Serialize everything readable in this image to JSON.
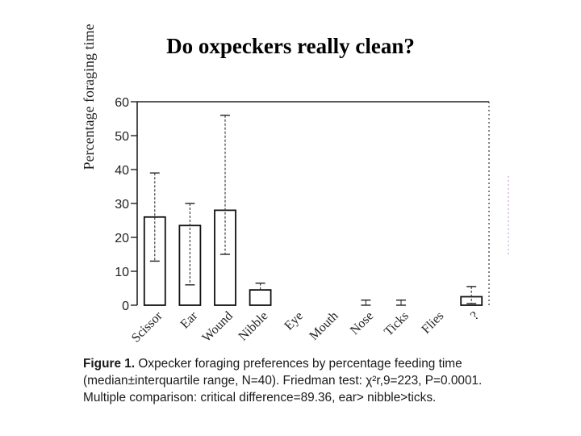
{
  "slide": {
    "title": "Do oxpeckers really clean?"
  },
  "caption": {
    "label": "Figure 1.",
    "text": "Oxpecker foraging preferences by percentage feeding time (median±interquartile range, N=40). Friedman test: χ²r,9=223, P=0.0001. Multiple comparison: critical difference=89.36, ear> nibble>ticks."
  },
  "chart_data": {
    "type": "bar",
    "title": "",
    "xlabel": "",
    "ylabel": "Percentage foraging time",
    "ylim": [
      0,
      60
    ],
    "yticks": [
      0,
      10,
      20,
      30,
      40,
      50,
      60
    ],
    "grid": false,
    "categories": [
      "Scissor",
      "Ear",
      "Wound",
      "Nibble",
      "Eye",
      "Mouth",
      "Nose",
      "Ticks",
      "Flies",
      "?"
    ],
    "series": [
      {
        "values": [
          26,
          23.5,
          28,
          4.5,
          0,
          0,
          0,
          0,
          0,
          2.5
        ],
        "error_low": [
          13,
          6,
          15,
          4.5,
          0,
          0,
          0,
          0,
          0,
          0.5
        ],
        "error_high": [
          39,
          30,
          56,
          6.5,
          0,
          0,
          1.5,
          1.5,
          0,
          5.5
        ]
      }
    ]
  }
}
